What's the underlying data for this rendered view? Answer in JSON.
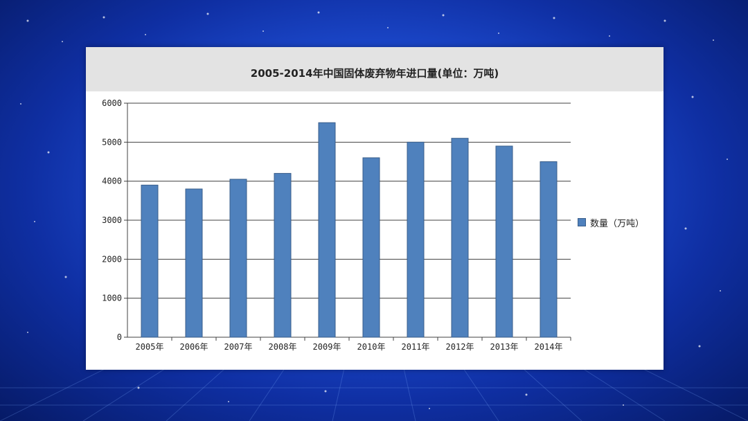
{
  "colors": {
    "bar_fill": "#4f81bd",
    "bar_stroke": "#385d8a",
    "grid": "#404040",
    "panel": "#ffffff",
    "title_bar": "#e3e3e3",
    "background": "#1f4fd6"
  },
  "chart_data": {
    "type": "bar",
    "title": "2005-2014年中国固体废弃物年进口量(单位：万吨)",
    "categories": [
      "2005年",
      "2006年",
      "2007年",
      "2008年",
      "2009年",
      "2010年",
      "2011年",
      "2012年",
      "2013年",
      "2014年"
    ],
    "series": [
      {
        "name": "数量（万吨）",
        "values": [
          3900,
          3800,
          4050,
          4200,
          5500,
          4600,
          5000,
          5100,
          4900,
          4500
        ]
      }
    ],
    "ylim": [
      0,
      6000
    ],
    "yticks": [
      0,
      1000,
      2000,
      3000,
      4000,
      5000,
      6000
    ],
    "xlabel": "",
    "ylabel": "",
    "grid": true,
    "legend_position": "right"
  }
}
